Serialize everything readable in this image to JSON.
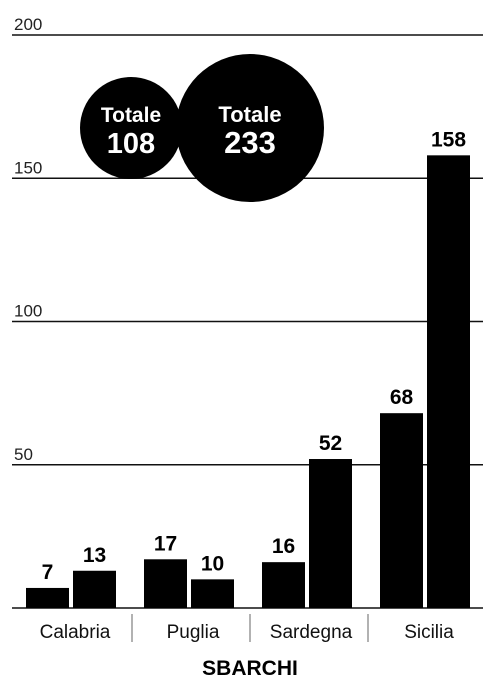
{
  "chart_data": {
    "type": "bar",
    "title": "",
    "xlabel": "SBARCHI",
    "ylabel": "",
    "ylim": [
      0,
      200
    ],
    "yticks": [
      50,
      100,
      150,
      200
    ],
    "grid": true,
    "categories": [
      "Calabria",
      "Puglia",
      "Sardegna",
      "Sicilia"
    ],
    "series": [
      {
        "values": [
          7,
          17,
          16,
          68
        ],
        "color": "#000000"
      },
      {
        "values": [
          13,
          10,
          52,
          158
        ],
        "color": "#000000"
      }
    ],
    "totals": [
      {
        "label": "Totale",
        "value": "108"
      },
      {
        "label": "Totale",
        "value": "233"
      }
    ]
  }
}
